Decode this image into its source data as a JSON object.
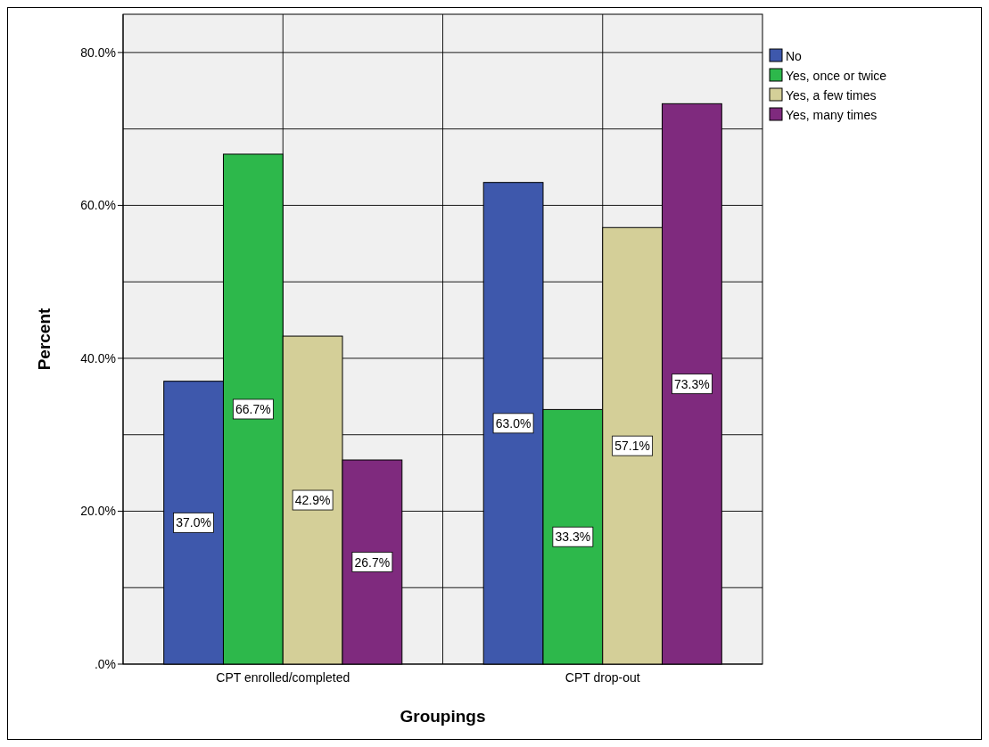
{
  "chart_data": {
    "type": "bar",
    "xlabel": "Groupings",
    "ylabel": "Percent",
    "categories": [
      "CPT enrolled/completed",
      "CPT drop-out"
    ],
    "series": [
      {
        "name": "No",
        "color": "#3e58ac",
        "values": [
          37.0,
          63.0
        ],
        "value_labels": [
          "37.0%",
          "63.0%"
        ]
      },
      {
        "name": "Yes, once or twice",
        "color": "#2db84b",
        "values": [
          66.7,
          33.3
        ],
        "value_labels": [
          "66.7%",
          "33.3%"
        ]
      },
      {
        "name": "Yes, a few times",
        "color": "#d4cf98",
        "values": [
          42.9,
          57.1
        ],
        "value_labels": [
          "42.9%",
          "57.1%"
        ]
      },
      {
        "name": "Yes, many times",
        "color": "#7f2a7e",
        "values": [
          26.7,
          73.3
        ],
        "value_labels": [
          "26.7%",
          "73.3%"
        ]
      }
    ],
    "ylim": [
      0,
      85
    ],
    "yticks": [
      {
        "value": 0,
        "label": ".0%"
      },
      {
        "value": 10,
        "label": null
      },
      {
        "value": 20,
        "label": "20.0%"
      },
      {
        "value": 30,
        "label": null
      },
      {
        "value": 40,
        "label": "40.0%"
      },
      {
        "value": 50,
        "label": null
      },
      {
        "value": 60,
        "label": "60.0%"
      },
      {
        "value": 70,
        "label": null
      },
      {
        "value": 80,
        "label": "80.0%"
      }
    ],
    "grid": true,
    "legend": "top right"
  }
}
